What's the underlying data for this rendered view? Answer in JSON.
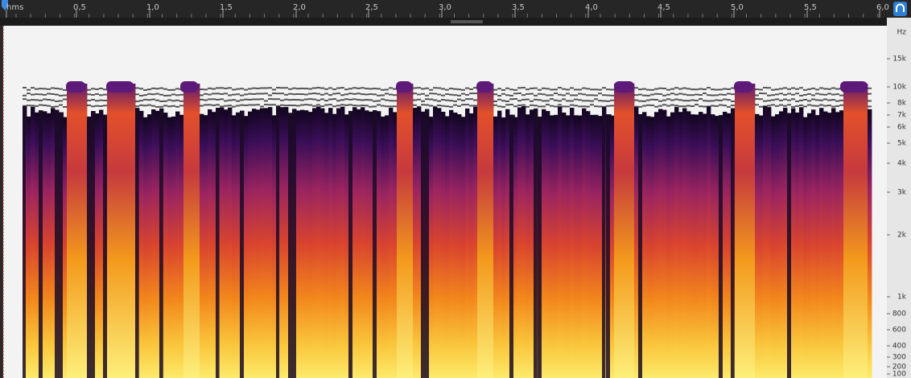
{
  "ruler": {
    "labels": [
      "hms",
      "0,5",
      "1,0",
      "1,5",
      "2,0",
      "2,5",
      "3,0",
      "3,5",
      "4,0",
      "4,5",
      "5,0",
      "5,5",
      "6,0"
    ]
  },
  "frequency_axis": {
    "labels": [
      "Hz",
      "15k",
      "10k",
      "8k",
      "7k",
      "6k",
      "5k",
      "4k",
      "3k",
      "2k",
      "1k",
      "800",
      "600",
      "400",
      "300",
      "200",
      "100"
    ]
  }
}
